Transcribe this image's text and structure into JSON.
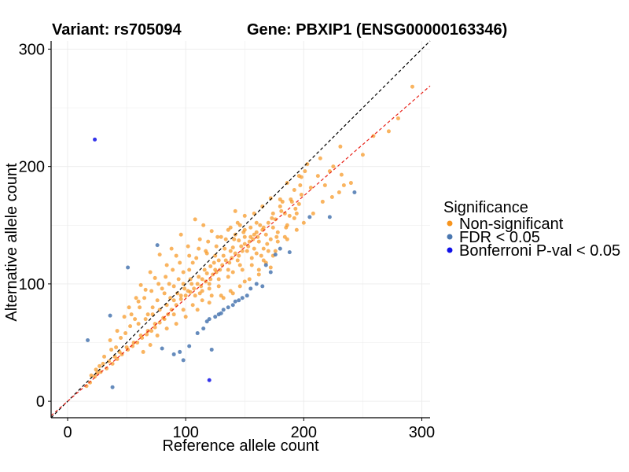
{
  "chart_data": {
    "type": "scatter",
    "title_left": "Variant: rs705094",
    "title_right": "Gene: PBXIP1 (ENSG00000163346)",
    "xlabel": "Reference allele count",
    "ylabel": "Alternative allele count",
    "xlim": [
      -14,
      307
    ],
    "ylim": [
      -14,
      307
    ],
    "xticks": [
      0,
      100,
      200,
      300
    ],
    "yticks": [
      0,
      100,
      200,
      300
    ],
    "grid": true,
    "legend_title": "Significance",
    "legend_position": "right",
    "lines": [
      {
        "style": "dashed",
        "color": "#000000",
        "intercept": 0,
        "slope": 1
      },
      {
        "style": "dashed",
        "color": "#e8231a",
        "intercept": 0,
        "slope": 0.875
      }
    ],
    "series": [
      {
        "name": "Non-significant",
        "color": "#f7941d",
        "points": [
          [
            292,
            268
          ],
          [
            280,
            241
          ],
          [
            272,
            230
          ],
          [
            259,
            226
          ],
          [
            250,
            210
          ],
          [
            231,
            217
          ],
          [
            225,
            200
          ],
          [
            232,
            193
          ],
          [
            222,
            196
          ],
          [
            214,
            207
          ],
          [
            212,
            192
          ],
          [
            203,
            202
          ],
          [
            198,
            191
          ],
          [
            186,
            186
          ],
          [
            180,
            172
          ],
          [
            172,
            173
          ],
          [
            165,
            166
          ],
          [
            160,
            152
          ],
          [
            155,
            148
          ],
          [
            150,
            140
          ],
          [
            145,
            137
          ],
          [
            140,
            131
          ],
          [
            132,
            124
          ],
          [
            128,
            120
          ],
          [
            125,
            112
          ],
          [
            121,
            115
          ],
          [
            118,
            109
          ],
          [
            114,
            104
          ],
          [
            110,
            100
          ],
          [
            107,
            96
          ],
          [
            104,
            93
          ],
          [
            100,
            90
          ],
          [
            96,
            87
          ],
          [
            92,
            82
          ],
          [
            88,
            78
          ],
          [
            85,
            74
          ],
          [
            81,
            71
          ],
          [
            78,
            67
          ],
          [
            74,
            63
          ],
          [
            71,
            60
          ],
          [
            67,
            57
          ],
          [
            63,
            54
          ],
          [
            59,
            50
          ],
          [
            55,
            47
          ],
          [
            51,
            44
          ],
          [
            46,
            40
          ],
          [
            42,
            36
          ],
          [
            38,
            32
          ],
          [
            33,
            28
          ],
          [
            28,
            25
          ],
          [
            23,
            21
          ],
          [
            19,
            16
          ],
          [
            16,
            13
          ],
          [
            108,
            155
          ],
          [
            115,
            150
          ],
          [
            96,
            142
          ],
          [
            88,
            130
          ],
          [
            78,
            125
          ],
          [
            70,
            110
          ],
          [
            62,
            99
          ],
          [
            58,
            88
          ],
          [
            52,
            80
          ],
          [
            48,
            72
          ],
          [
            42,
            60
          ],
          [
            36,
            52
          ],
          [
            130,
            140
          ],
          [
            138,
            148
          ],
          [
            146,
            150
          ],
          [
            150,
            158
          ],
          [
            142,
            162
          ],
          [
            122,
            145
          ],
          [
            112,
            138
          ],
          [
            102,
            132
          ],
          [
            92,
            124
          ],
          [
            84,
            116
          ],
          [
            74,
            105
          ],
          [
            66,
            95
          ],
          [
            60,
            85
          ],
          [
            54,
            74
          ],
          [
            128,
            98
          ],
          [
            136,
            106
          ],
          [
            146,
            116
          ],
          [
            156,
            122
          ],
          [
            166,
            130
          ],
          [
            172,
            138
          ],
          [
            178,
            144
          ],
          [
            186,
            150
          ],
          [
            192,
            156
          ],
          [
            184,
            140
          ],
          [
            176,
            128
          ],
          [
            162,
            112
          ],
          [
            150,
            102
          ],
          [
            140,
            92
          ],
          [
            132,
            88
          ],
          [
            120,
            84
          ],
          [
            110,
            78
          ],
          [
            100,
            72
          ],
          [
            92,
            66
          ],
          [
            84,
            62
          ],
          [
            76,
            56
          ],
          [
            70,
            48
          ],
          [
            64,
            42
          ],
          [
            158,
            130
          ],
          [
            168,
            142
          ],
          [
            176,
            155
          ],
          [
            190,
            170
          ],
          [
            198,
            176
          ],
          [
            206,
            182
          ],
          [
            194,
            160
          ],
          [
            184,
            160
          ],
          [
            170,
            152
          ],
          [
            160,
            144
          ],
          [
            138,
            128
          ],
          [
            124,
            118
          ],
          [
            116,
            112
          ],
          [
            104,
            104
          ],
          [
            98,
            100
          ],
          [
            90,
            98
          ],
          [
            82,
            92
          ],
          [
            76,
            86
          ],
          [
            72,
            80
          ],
          [
            68,
            74
          ],
          [
            118,
            126
          ],
          [
            126,
            132
          ],
          [
            134,
            138
          ],
          [
            142,
            142
          ],
          [
            154,
            136
          ],
          [
            160,
            126
          ],
          [
            166,
            120
          ],
          [
            172,
            114
          ],
          [
            148,
            128
          ],
          [
            106,
            118
          ],
          [
            98,
            110
          ],
          [
            94,
            104
          ],
          [
            86,
            100
          ],
          [
            80,
            96
          ],
          [
            112,
            92
          ],
          [
            120,
            96
          ],
          [
            128,
            104
          ],
          [
            136,
            112
          ],
          [
            144,
            120
          ],
          [
            152,
            128
          ],
          [
            162,
            136
          ],
          [
            192,
            180
          ],
          [
            201,
            196
          ],
          [
            188,
            158
          ],
          [
            180,
            166
          ],
          [
            196,
            168
          ],
          [
            174,
            148
          ],
          [
            158,
            160
          ],
          [
            150,
            146
          ],
          [
            144,
            152
          ],
          [
            136,
            146
          ],
          [
            127,
            140
          ],
          [
            119,
            136
          ],
          [
            111,
            130
          ],
          [
            103,
            124
          ],
          [
            95,
            118
          ],
          [
            89,
            112
          ],
          [
            83,
            106
          ],
          [
            77,
            100
          ],
          [
            71,
            94
          ],
          [
            65,
            88
          ],
          [
            61,
            80
          ],
          [
            57,
            70
          ],
          [
            53,
            64
          ],
          [
            49,
            58
          ],
          [
            45,
            54
          ],
          [
            41,
            46
          ],
          [
            37,
            44
          ],
          [
            31,
            38
          ],
          [
            27,
            30
          ],
          [
            24,
            27
          ],
          [
            20,
            22
          ],
          [
            140,
            110
          ],
          [
            148,
            112
          ],
          [
            156,
            116
          ],
          [
            164,
            124
          ],
          [
            170,
            128
          ],
          [
            178,
            136
          ],
          [
            186,
            138
          ],
          [
            194,
            146
          ],
          [
            200,
            152
          ],
          [
            208,
            160
          ],
          [
            216,
            170
          ],
          [
            224,
            174
          ],
          [
            234,
            184
          ],
          [
            240,
            186
          ],
          [
            230,
            178
          ],
          [
            218,
            184
          ],
          [
            196,
            192
          ],
          [
            174,
            124
          ],
          [
            168,
            118
          ],
          [
            162,
            108
          ],
          [
            154,
            104
          ],
          [
            146,
            98
          ],
          [
            138,
            94
          ],
          [
            130,
            90
          ],
          [
            122,
            90
          ],
          [
            114,
            86
          ],
          [
            106,
            82
          ],
          [
            98,
            78
          ],
          [
            90,
            74
          ],
          [
            82,
            70
          ],
          [
            74,
            66
          ],
          [
            68,
            60
          ],
          [
            62,
            56
          ],
          [
            56,
            50
          ],
          [
            50,
            46
          ],
          [
            44,
            42
          ],
          [
            40,
            38
          ],
          [
            35,
            34
          ],
          [
            30,
            32
          ],
          [
            25,
            24
          ],
          [
            103,
            112
          ],
          [
            109,
            122
          ],
          [
            117,
            128
          ],
          [
            125,
            124
          ],
          [
            133,
            130
          ],
          [
            141,
            138
          ],
          [
            149,
            144
          ],
          [
            157,
            138
          ],
          [
            165,
            146
          ],
          [
            173,
            156
          ],
          [
            181,
            162
          ],
          [
            189,
            172
          ],
          [
            197,
            184
          ],
          [
            113,
            98
          ],
          [
            121,
            104
          ],
          [
            129,
            112
          ],
          [
            137,
            118
          ],
          [
            145,
            124
          ],
          [
            153,
            132
          ],
          [
            161,
            140
          ],
          [
            169,
            134
          ],
          [
            177,
            140
          ],
          [
            185,
            148
          ],
          [
            193,
            164
          ],
          [
            87,
            88
          ],
          [
            93,
            92
          ],
          [
            99,
            96
          ],
          [
            105,
            100
          ],
          [
            111,
            106
          ],
          [
            117,
            102
          ],
          [
            123,
            108
          ],
          [
            131,
            116
          ],
          [
            139,
            122
          ],
          [
            147,
            132
          ],
          [
            155,
            140
          ],
          [
            163,
            150
          ],
          [
            60,
            66
          ],
          [
            66,
            70
          ],
          [
            72,
            74
          ],
          [
            78,
            78
          ],
          [
            84,
            82
          ],
          [
            90,
            86
          ],
          [
            96,
            90
          ],
          [
            102,
            94
          ],
          [
            108,
            90
          ],
          [
            114,
            94
          ],
          [
            120,
            100
          ],
          [
            126,
            110
          ],
          [
            134,
            120
          ],
          [
            142,
            126
          ],
          [
            150,
            134
          ],
          [
            158,
            142
          ],
          [
            166,
            148
          ],
          [
            174,
            160
          ],
          [
            182,
            170
          ]
        ]
      },
      {
        "name": "FDR < 0.05",
        "color": "#4a77b0",
        "points": [
          [
            17,
            52
          ],
          [
            36,
            73
          ],
          [
            38,
            12
          ],
          [
            51,
            114
          ],
          [
            76,
            133
          ],
          [
            80,
            45
          ],
          [
            90,
            40
          ],
          [
            95,
            42
          ],
          [
            98,
            35
          ],
          [
            103,
            47
          ],
          [
            110,
            58
          ],
          [
            115,
            62
          ],
          [
            118,
            68
          ],
          [
            120,
            70
          ],
          [
            122,
            44
          ],
          [
            125,
            72
          ],
          [
            128,
            74
          ],
          [
            130,
            75
          ],
          [
            132,
            78
          ],
          [
            136,
            80
          ],
          [
            140,
            82
          ],
          [
            142,
            85
          ],
          [
            145,
            86
          ],
          [
            148,
            88
          ],
          [
            152,
            90
          ],
          [
            155,
            96
          ],
          [
            160,
            100
          ],
          [
            165,
            98
          ],
          [
            168,
            116
          ],
          [
            172,
            110
          ],
          [
            176,
            125
          ],
          [
            180,
            130
          ],
          [
            188,
            127
          ],
          [
            205,
            157
          ],
          [
            222,
            157
          ],
          [
            243,
            178
          ]
        ]
      },
      {
        "name": "Bonferroni P-val < 0.05",
        "color": "#1010e8",
        "points": [
          [
            23,
            223
          ],
          [
            120,
            18
          ]
        ]
      }
    ]
  }
}
